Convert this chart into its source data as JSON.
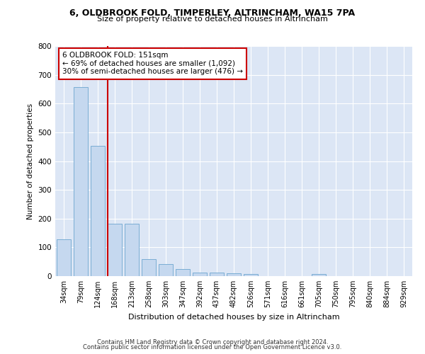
{
  "title_line1": "6, OLDBROOK FOLD, TIMPERLEY, ALTRINCHAM, WA15 7PA",
  "title_line2": "Size of property relative to detached houses in Altrincham",
  "xlabel": "Distribution of detached houses by size in Altrincham",
  "ylabel": "Number of detached properties",
  "categories": [
    "34sqm",
    "79sqm",
    "124sqm",
    "168sqm",
    "213sqm",
    "258sqm",
    "303sqm",
    "347sqm",
    "392sqm",
    "437sqm",
    "482sqm",
    "526sqm",
    "571sqm",
    "616sqm",
    "661sqm",
    "705sqm",
    "750sqm",
    "795sqm",
    "840sqm",
    "884sqm",
    "929sqm"
  ],
  "values": [
    128,
    658,
    452,
    183,
    183,
    60,
    43,
    25,
    12,
    13,
    11,
    8,
    0,
    0,
    0,
    8,
    0,
    0,
    0,
    0,
    0
  ],
  "bar_color": "#c5d8ef",
  "bar_edge_color": "#7aadd4",
  "vline_x_index": 3,
  "vline_color": "#cc0000",
  "annotation_text": "6 OLDBROOK FOLD: 151sqm\n← 69% of detached houses are smaller (1,092)\n30% of semi-detached houses are larger (476) →",
  "annotation_box_color": "#ffffff",
  "annotation_box_edge_color": "#cc0000",
  "ylim": [
    0,
    800
  ],
  "yticks": [
    0,
    100,
    200,
    300,
    400,
    500,
    600,
    700,
    800
  ],
  "background_color": "#dce6f5",
  "grid_color": "#ffffff",
  "footer_line1": "Contains HM Land Registry data © Crown copyright and database right 2024.",
  "footer_line2": "Contains public sector information licensed under the Open Government Licence v3.0."
}
